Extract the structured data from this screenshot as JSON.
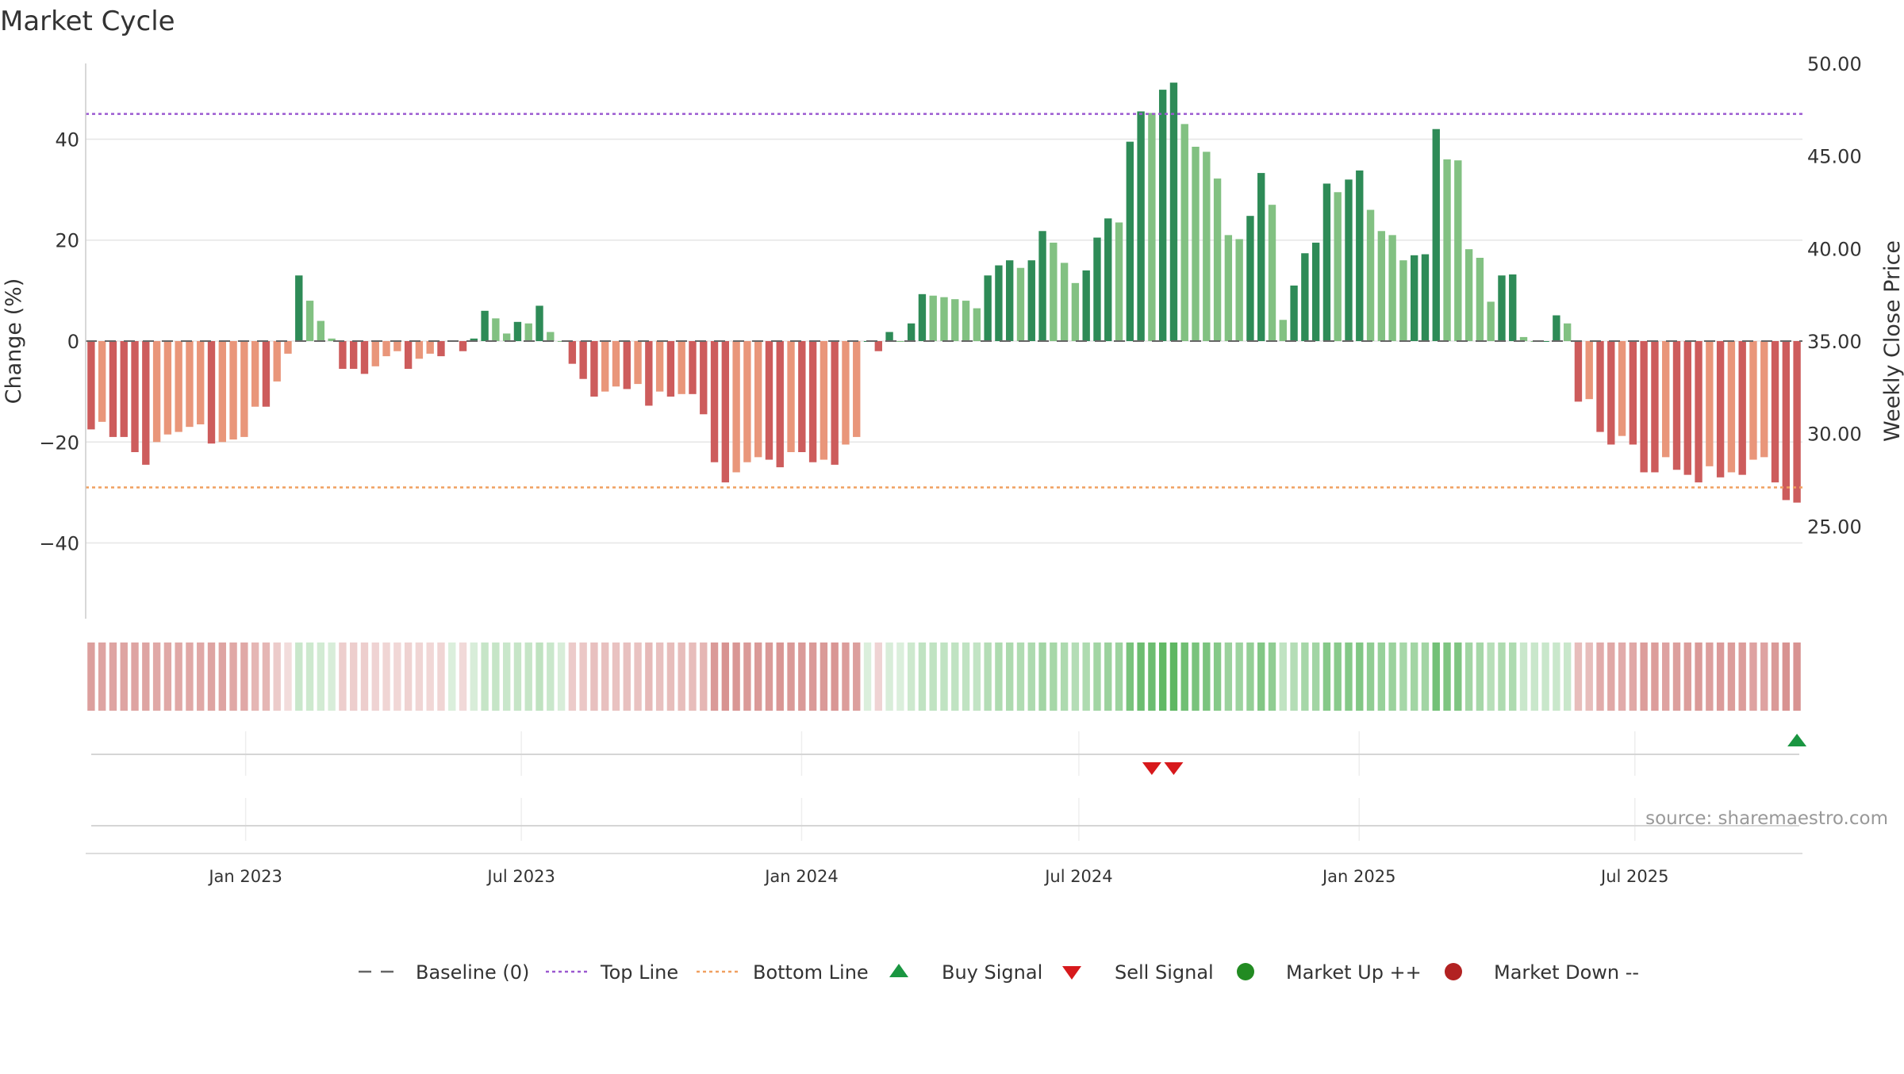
{
  "chart_data": {
    "type": "bar",
    "title": "Market Cycle",
    "ylabel": "Change (%)",
    "y2label": "Weekly Close Price",
    "ylim": [
      -55,
      55
    ],
    "y2lim": [
      20,
      50
    ],
    "yticks": [
      "40",
      "20",
      "0",
      "−20",
      "−40"
    ],
    "y2ticks": [
      "50.00",
      "45.00",
      "40.00",
      "35.00",
      "30.00",
      "25.00"
    ],
    "x_start": "2022-09-18",
    "x_end": "2025-10-19",
    "xticks": [
      {
        "date": "2023-01-01",
        "label": "Jan 2023"
      },
      {
        "date": "2023-07-01",
        "label": "Jul 2023"
      },
      {
        "date": "2024-01-01",
        "label": "Jan 2024"
      },
      {
        "date": "2024-07-01",
        "label": "Jul 2024"
      },
      {
        "date": "2025-01-01",
        "label": "Jan 2025"
      },
      {
        "date": "2025-07-01",
        "label": "Jul 2025"
      }
    ],
    "top_line": 45,
    "bottom_line": -29,
    "grid": true,
    "source_text": "source: sharemaestro.com",
    "colors": {
      "up_dark": "#2e8b57",
      "up_light": "#82c182",
      "down_dark": "#cd5c5c",
      "down_light": "#e9967a",
      "top_line": "#9b59d0",
      "bottom_line": "#f0a060",
      "buy": "#1a9641",
      "sell": "#d7191c",
      "market_up": "#228b22",
      "market_down": "#b22222",
      "baseline": "#666666"
    },
    "series": [
      {
        "values": [
          -17.5,
          -16,
          -19,
          -19,
          -22,
          -24.5,
          -20,
          -18.5,
          -18,
          -17,
          -16.5,
          -20.3,
          -20,
          -19.5,
          -19,
          -13,
          -13,
          -8,
          -2.5,
          13,
          8,
          4,
          0.5,
          -5.5,
          -5.5,
          -6.5,
          -5,
          -3,
          -2,
          -5.5,
          -3.5,
          -2.5,
          -3,
          0,
          -2,
          0.5,
          6,
          4.5,
          1.5,
          3.8,
          3.5,
          7,
          1.8,
          0,
          -4.5,
          -7.5,
          -11,
          -10,
          -9,
          -9.5,
          -8.5,
          -12.8,
          -10,
          -11,
          -10.5,
          -10.5,
          -14.5,
          -24,
          -28,
          -26,
          -24,
          -23,
          -23.5,
          -25,
          -22,
          -22,
          -24,
          -23.5,
          -24.5,
          -20.5,
          -19,
          0,
          -2,
          1.8,
          0,
          3.5,
          9.3,
          9,
          8.7,
          8.3,
          8,
          6.5,
          13,
          15,
          16,
          14.5,
          16,
          21.8,
          19.5,
          15.5,
          11.5,
          14,
          20.5,
          24.3,
          23.5,
          39.5,
          45.5,
          45.2,
          49.8,
          51.2,
          43,
          38.5,
          37.5,
          32.2,
          21,
          20.2,
          24.8,
          33.3,
          27,
          4.2,
          11,
          17.4,
          19.5,
          31.2,
          29.5,
          32,
          33.8,
          26,
          21.8,
          21,
          16,
          17,
          17.2,
          42,
          36,
          35.8,
          18.2,
          16.5,
          7.8,
          13,
          13.2,
          0.8,
          0,
          0,
          5.1,
          3.5,
          -12,
          -11.5,
          -18,
          -20.5,
          -18.8,
          -20.5,
          -26,
          -26,
          -23,
          -25.5,
          -26.5,
          -28,
          -24.8,
          -27,
          -26,
          -26.5,
          -23.5,
          -23,
          -28,
          -31.5,
          -32
        ],
        "strength": [
          0.55,
          0.52,
          0.52,
          0.52,
          0.52,
          0.52,
          0.5,
          0.5,
          0.5,
          0.5,
          0.5,
          0.52,
          0.52,
          0.5,
          0.5,
          0.42,
          0.42,
          0.3,
          0.2,
          0.3,
          0.28,
          0.25,
          0.22,
          0.28,
          0.28,
          0.28,
          0.25,
          0.24,
          0.23,
          0.26,
          0.24,
          0.23,
          0.24,
          0.2,
          0.22,
          0.22,
          0.32,
          0.32,
          0.3,
          0.32,
          0.32,
          0.36,
          0.3,
          0.22,
          0.3,
          0.32,
          0.36,
          0.36,
          0.35,
          0.36,
          0.35,
          0.4,
          0.36,
          0.38,
          0.38,
          0.38,
          0.42,
          0.58,
          0.62,
          0.6,
          0.58,
          0.58,
          0.58,
          0.6,
          0.58,
          0.58,
          0.58,
          0.58,
          0.6,
          0.56,
          0.55,
          0.2,
          0.25,
          0.22,
          0.2,
          0.28,
          0.35,
          0.35,
          0.35,
          0.35,
          0.35,
          0.34,
          0.42,
          0.45,
          0.46,
          0.44,
          0.46,
          0.52,
          0.5,
          0.46,
          0.42,
          0.45,
          0.52,
          0.56,
          0.55,
          0.75,
          0.82,
          0.82,
          0.88,
          0.9,
          0.8,
          0.75,
          0.74,
          0.68,
          0.56,
          0.55,
          0.6,
          0.7,
          0.62,
          0.35,
          0.42,
          0.5,
          0.52,
          0.68,
          0.66,
          0.68,
          0.7,
          0.62,
          0.58,
          0.56,
          0.5,
          0.52,
          0.52,
          0.78,
          0.72,
          0.72,
          0.52,
          0.5,
          0.4,
          0.45,
          0.45,
          0.3,
          0.3,
          0.3,
          0.3,
          0.3,
          0.38,
          0.38,
          0.48,
          0.5,
          0.48,
          0.5,
          0.56,
          0.56,
          0.53,
          0.55,
          0.56,
          0.58,
          0.55,
          0.57,
          0.56,
          0.56,
          0.53,
          0.53,
          0.58,
          0.62,
          0.62
        ]
      }
    ],
    "sell_signals": [
      97,
      99
    ],
    "buy_signals": [
      156
    ],
    "legend": [
      {
        "key": "baseline",
        "label": "Baseline (0)"
      },
      {
        "key": "top",
        "label": "Top Line"
      },
      {
        "key": "bottom",
        "label": "Bottom Line"
      },
      {
        "key": "buy",
        "label": "Buy Signal"
      },
      {
        "key": "sell",
        "label": "Sell Signal"
      },
      {
        "key": "mup",
        "label": "Market Up ++"
      },
      {
        "key": "mdown",
        "label": "Market Down --"
      }
    ]
  }
}
